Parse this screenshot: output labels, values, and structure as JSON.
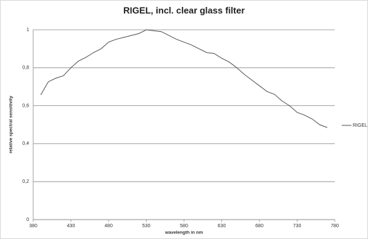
{
  "chart_data": {
    "type": "line",
    "title": "RIGEL, incl. clear glass filter",
    "x_label": "wavelength in nm",
    "y_label": "relative spectral sensitivity",
    "x": [
      390,
      400,
      410,
      420,
      430,
      440,
      450,
      460,
      470,
      480,
      490,
      500,
      510,
      520,
      530,
      540,
      550,
      560,
      570,
      580,
      590,
      600,
      610,
      620,
      630,
      640,
      650,
      660,
      670,
      680,
      690,
      700,
      710,
      720,
      730,
      740,
      750,
      760,
      770
    ],
    "series": [
      {
        "name": "RIGEL",
        "color": "#555555",
        "values": [
          0.657,
          0.726,
          0.745,
          0.758,
          0.8,
          0.835,
          0.855,
          0.88,
          0.9,
          0.935,
          0.95,
          0.96,
          0.97,
          0.98,
          1.0,
          0.995,
          0.99,
          0.97,
          0.95,
          0.935,
          0.92,
          0.9,
          0.88,
          0.875,
          0.85,
          0.83,
          0.8,
          0.765,
          0.735,
          0.705,
          0.675,
          0.66,
          0.625,
          0.6,
          0.565,
          0.55,
          0.53,
          0.5,
          0.485
        ]
      }
    ],
    "xlim": [
      380,
      780
    ],
    "xticks": [
      380,
      430,
      480,
      530,
      580,
      630,
      680,
      730,
      780
    ],
    "ylim": [
      0,
      1
    ],
    "yticks": [
      0,
      {
        "value": 0.2,
        "label": "0,2"
      },
      {
        "value": 0.4,
        "label": "0,4"
      },
      {
        "value": 0.6,
        "label": "0,6"
      },
      {
        "value": 0.8,
        "label": "0,8"
      },
      1
    ],
    "grid": true,
    "legend": "right"
  }
}
